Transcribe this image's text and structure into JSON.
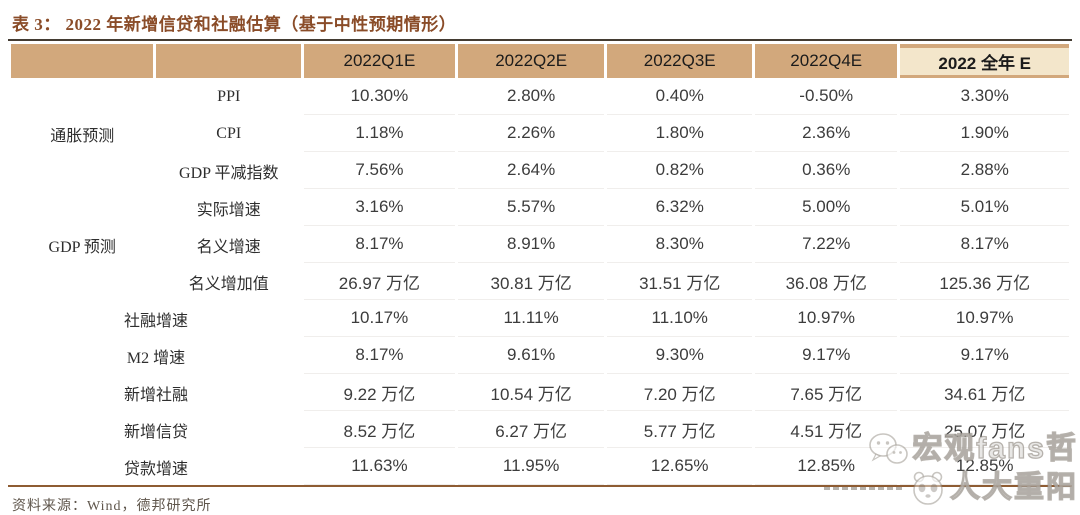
{
  "title": "表 3：  2022 年新增信贷和社融估算（基于中性预期情形）",
  "table": {
    "columns": [
      "2022Q1E",
      "2022Q2E",
      "2022Q3E",
      "2022Q4E",
      "2022 全年 E"
    ],
    "groups": [
      {
        "name": "通胀预测",
        "rows": [
          {
            "label": "PPI",
            "values": [
              "10.30%",
              "2.80%",
              "0.40%",
              "-0.50%",
              "3.30%"
            ]
          },
          {
            "label": "CPI",
            "values": [
              "1.18%",
              "2.26%",
              "1.80%",
              "2.36%",
              "1.90%"
            ]
          },
          {
            "label": "GDP 平减指数",
            "values": [
              "7.56%",
              "2.64%",
              "0.82%",
              "0.36%",
              "2.88%"
            ]
          }
        ]
      },
      {
        "name": "GDP 预测",
        "rows": [
          {
            "label": "实际增速",
            "values": [
              "3.16%",
              "5.57%",
              "6.32%",
              "5.00%",
              "5.01%"
            ]
          },
          {
            "label": "名义增速",
            "values": [
              "8.17%",
              "8.91%",
              "8.30%",
              "7.22%",
              "8.17%"
            ]
          },
          {
            "label": "名义增加值",
            "values": [
              "26.97 万亿",
              "30.81 万亿",
              "31.51 万亿",
              "36.08 万亿",
              "125.36 万亿"
            ]
          }
        ]
      },
      {
        "name": "",
        "rows": [
          {
            "label": "社融增速",
            "values": [
              "10.17%",
              "11.11%",
              "11.10%",
              "10.97%",
              "10.97%"
            ]
          },
          {
            "label": "M2 增速",
            "values": [
              "8.17%",
              "9.61%",
              "9.30%",
              "9.17%",
              "9.17%"
            ]
          },
          {
            "label": "新增社融",
            "values": [
              "9.22 万亿",
              "10.54 万亿",
              "7.20 万亿",
              "7.65 万亿",
              "34.61 万亿"
            ]
          },
          {
            "label": "新增信贷",
            "values": [
              "8.52 万亿",
              "6.27 万亿",
              "5.77 万亿",
              "4.51 万亿",
              "25.07 万亿"
            ]
          },
          {
            "label": "贷款增速",
            "values": [
              "11.63%",
              "11.95%",
              "12.65%",
              "12.85%",
              "12.85%"
            ]
          }
        ]
      }
    ]
  },
  "footer": {
    "source": "资料来源：Wind，德邦研究所"
  },
  "watermark": {
    "line1": "宏观fans哲",
    "line2": "人大重阳",
    "icons": [
      "wechat-icon",
      "panda-icon"
    ]
  },
  "colors": {
    "header_tan": "#d2a87c",
    "annual_header_bg": "#f3e6cb",
    "title_brown": "#8a4c28",
    "top_rule": "#433b32",
    "bottom_rule": "#8e5c33",
    "body_text": "#3c3c3c"
  },
  "chart_data": {
    "type": "table",
    "title": "表 3：2022 年新增信贷和社融估算（基于中性预期情形）",
    "columns": [
      "",
      "",
      "2022Q1E",
      "2022Q2E",
      "2022Q3E",
      "2022Q4E",
      "2022 全年 E"
    ],
    "rows": [
      [
        "通胀预测",
        "PPI",
        "10.30%",
        "2.80%",
        "0.40%",
        "-0.50%",
        "3.30%"
      ],
      [
        "通胀预测",
        "CPI",
        "1.18%",
        "2.26%",
        "1.80%",
        "2.36%",
        "1.90%"
      ],
      [
        "通胀预测",
        "GDP 平减指数",
        "7.56%",
        "2.64%",
        "0.82%",
        "0.36%",
        "2.88%"
      ],
      [
        "GDP 预测",
        "实际增速",
        "3.16%",
        "5.57%",
        "6.32%",
        "5.00%",
        "5.01%"
      ],
      [
        "GDP 预测",
        "名义增速",
        "8.17%",
        "8.91%",
        "8.30%",
        "7.22%",
        "8.17%"
      ],
      [
        "GDP 预测",
        "名义增加值",
        "26.97 万亿",
        "30.81 万亿",
        "31.51 万亿",
        "36.08 万亿",
        "125.36 万亿"
      ],
      [
        "",
        "社融增速",
        "10.17%",
        "11.11%",
        "11.10%",
        "10.97%",
        "10.97%"
      ],
      [
        "",
        "M2 增速",
        "8.17%",
        "9.61%",
        "9.30%",
        "9.17%",
        "9.17%"
      ],
      [
        "",
        "新增社融",
        "9.22 万亿",
        "10.54 万亿",
        "7.20 万亿",
        "7.65 万亿",
        "34.61 万亿"
      ],
      [
        "",
        "新增信贷",
        "8.52 万亿",
        "6.27 万亿",
        "5.77 万亿",
        "4.51 万亿",
        "25.07 万亿"
      ],
      [
        "",
        "贷款增速",
        "11.63%",
        "11.95%",
        "12.65%",
        "12.85%",
        "12.85%"
      ]
    ]
  }
}
